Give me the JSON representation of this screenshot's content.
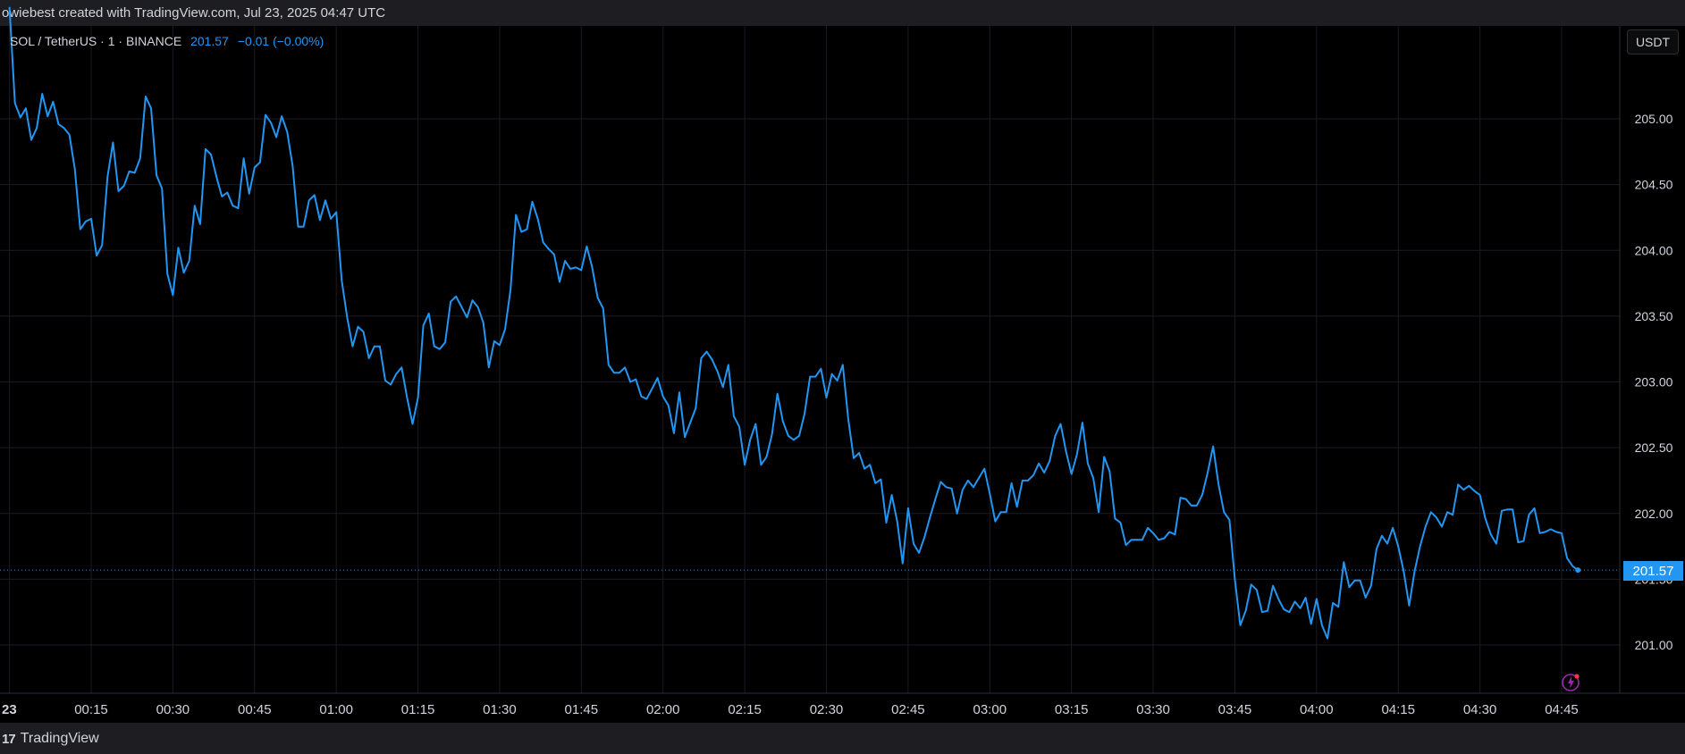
{
  "header": {
    "watermark_text": "owiebest created with TradingView.com, Jul 23, 2025 04:47 UTC"
  },
  "legend": {
    "symbol": "SOL / TetherUS · 1 · BINANCE",
    "last_price": "201.57",
    "change": "−0.01 (−0.00%)"
  },
  "toolbar": {
    "currency_label": "USDT"
  },
  "footer": {
    "brand_label": "TradingView"
  },
  "colors": {
    "line": "#2196f3",
    "background": "#000000",
    "grid": "#1a1c22",
    "axis_text": "#d1d4dc"
  },
  "price_badge": "201.57",
  "chart_data": {
    "type": "line",
    "title": "",
    "xlabel": "",
    "ylabel": "",
    "ylim": [
      200.64,
      205.86
    ],
    "y_ticks": [
      205.0,
      204.5,
      204.0,
      203.5,
      203.0,
      202.5,
      202.0,
      201.5,
      201.0
    ],
    "y_tick_labels": [
      "205.00",
      "204.50",
      "204.00",
      "203.50",
      "203.00",
      "202.50",
      "202.00",
      "201.50",
      "201.00"
    ],
    "x_tick_labels": [
      "23",
      "00:15",
      "00:30",
      "00:45",
      "01:00",
      "01:15",
      "01:30",
      "01:45",
      "02:00",
      "02:15",
      "02:30",
      "02:45",
      "03:00",
      "03:15",
      "03:30",
      "03:45",
      "04:00",
      "04:15",
      "04:30",
      "04:45"
    ],
    "x_tick_minutes": [
      0,
      15,
      30,
      45,
      60,
      75,
      90,
      105,
      120,
      135,
      150,
      165,
      180,
      195,
      210,
      225,
      240,
      255,
      270,
      285
    ],
    "xlim_minutes": [
      0,
      295
    ],
    "grid": true,
    "last_price": 201.57,
    "series": [
      {
        "name": "",
        "x_minutes": [
          0,
          1,
          2,
          3,
          4,
          5,
          6,
          7,
          8,
          9,
          10,
          11,
          12,
          13,
          14,
          15,
          16,
          17,
          18,
          19,
          20,
          21,
          22,
          23,
          24,
          25,
          26,
          27,
          28,
          29,
          30,
          31,
          32,
          33,
          34,
          35,
          36,
          37,
          38,
          39,
          40,
          41,
          42,
          43,
          44,
          45,
          46,
          47,
          48,
          49,
          50,
          51,
          52,
          53,
          54,
          55,
          56,
          57,
          58,
          59,
          60,
          61,
          62,
          63,
          64,
          65,
          66,
          67,
          68,
          69,
          70,
          71,
          72,
          73,
          74,
          75,
          76,
          77,
          78,
          79,
          80,
          81,
          82,
          83,
          84,
          85,
          86,
          87,
          88,
          89,
          90,
          91,
          92,
          93,
          94,
          95,
          96,
          97,
          98,
          99,
          100,
          101,
          102,
          103,
          104,
          105,
          106,
          107,
          108,
          109,
          110,
          111,
          112,
          113,
          114,
          115,
          116,
          117,
          118,
          119,
          120,
          121,
          122,
          123,
          124,
          125,
          126,
          127,
          128,
          129,
          130,
          131,
          132,
          133,
          134,
          135,
          136,
          137,
          138,
          139,
          140,
          141,
          142,
          143,
          144,
          145,
          146,
          147,
          148,
          149,
          150,
          151,
          152,
          153,
          154,
          155,
          156,
          157,
          158,
          159,
          160,
          161,
          162,
          163,
          164,
          165,
          166,
          167,
          168,
          169,
          170,
          171,
          172,
          173,
          174,
          175,
          176,
          177,
          178,
          179,
          180,
          181,
          182,
          183,
          184,
          185,
          186,
          187,
          188,
          189,
          190,
          191,
          192,
          193,
          194,
          195,
          196,
          197,
          198,
          199,
          200,
          201,
          202,
          203,
          204,
          205,
          206,
          207,
          208,
          209,
          210,
          211,
          212,
          213,
          214,
          215,
          216,
          217,
          218,
          219,
          220,
          221,
          222,
          223,
          224,
          225,
          226,
          227,
          228,
          229,
          230,
          231,
          232,
          233,
          234,
          235,
          236,
          237,
          238,
          239,
          240,
          241,
          242,
          243,
          244,
          245,
          246,
          247,
          248,
          249,
          250,
          251,
          252,
          253,
          254,
          255,
          256,
          257,
          258,
          259,
          260,
          261,
          262,
          263,
          264,
          265,
          266,
          267,
          268,
          269,
          270,
          271,
          272,
          273,
          274,
          275,
          276,
          277,
          278,
          279,
          280,
          281,
          282,
          283,
          284,
          285,
          286,
          287,
          288
        ],
        "values": [
          205.85,
          205.12,
          205.01,
          205.08,
          204.84,
          204.93,
          205.19,
          205.02,
          205.13,
          204.96,
          204.93,
          204.88,
          204.62,
          204.16,
          204.22,
          204.24,
          203.96,
          204.04,
          204.56,
          204.82,
          204.45,
          204.49,
          204.6,
          204.59,
          204.7,
          205.17,
          205.08,
          204.57,
          204.47,
          203.82,
          203.66,
          204.02,
          203.83,
          203.92,
          204.34,
          204.2,
          204.77,
          204.73,
          204.56,
          204.41,
          204.44,
          204.34,
          204.32,
          204.7,
          204.43,
          204.63,
          204.67,
          205.03,
          204.97,
          204.86,
          205.02,
          204.9,
          204.64,
          204.18,
          204.18,
          204.38,
          204.42,
          204.23,
          204.38,
          204.24,
          204.29,
          203.77,
          203.49,
          203.27,
          203.42,
          203.38,
          203.18,
          203.27,
          203.27,
          203.01,
          202.98,
          203.06,
          203.11,
          202.88,
          202.68,
          202.88,
          203.43,
          203.52,
          203.27,
          203.25,
          203.3,
          203.61,
          203.65,
          203.57,
          203.49,
          203.62,
          203.57,
          203.45,
          203.11,
          203.31,
          203.28,
          203.4,
          203.7,
          204.27,
          204.14,
          204.16,
          204.37,
          204.24,
          204.06,
          204.01,
          203.97,
          203.76,
          203.92,
          203.86,
          203.87,
          203.85,
          204.03,
          203.87,
          203.64,
          203.56,
          203.13,
          203.07,
          203.07,
          203.11,
          203.0,
          203.02,
          202.89,
          202.87,
          202.95,
          203.03,
          202.89,
          202.82,
          202.61,
          202.92,
          202.58,
          202.69,
          202.8,
          203.18,
          203.23,
          203.17,
          203.08,
          202.96,
          203.13,
          202.74,
          202.66,
          202.37,
          202.56,
          202.68,
          202.37,
          202.43,
          202.6,
          202.91,
          202.7,
          202.59,
          202.56,
          202.59,
          202.76,
          203.04,
          203.04,
          203.1,
          202.88,
          203.06,
          203.01,
          203.13,
          202.72,
          202.42,
          202.46,
          202.34,
          202.37,
          202.23,
          202.26,
          201.93,
          202.14,
          201.94,
          201.62,
          202.04,
          201.77,
          201.7,
          201.82,
          201.97,
          202.11,
          202.24,
          202.2,
          202.19,
          202.0,
          202.18,
          202.25,
          202.2,
          202.27,
          202.34,
          202.15,
          201.94,
          202.01,
          202.01,
          202.23,
          202.05,
          202.25,
          202.25,
          202.29,
          202.38,
          202.31,
          202.4,
          202.59,
          202.68,
          202.47,
          202.3,
          202.45,
          202.69,
          202.38,
          202.27,
          202.01,
          202.43,
          202.32,
          201.96,
          201.93,
          201.76,
          201.8,
          201.8,
          201.8,
          201.89,
          201.85,
          201.8,
          201.81,
          201.86,
          201.84,
          202.12,
          202.11,
          202.06,
          202.06,
          202.14,
          202.31,
          202.51,
          202.22,
          202.01,
          201.95,
          201.5,
          201.15,
          201.26,
          201.46,
          201.42,
          201.25,
          201.26,
          201.45,
          201.35,
          201.27,
          201.25,
          201.33,
          201.28,
          201.36,
          201.16,
          201.35,
          201.15,
          201.05,
          201.32,
          201.29,
          201.63,
          201.44,
          201.49,
          201.49,
          201.36,
          201.45,
          201.73,
          201.83,
          201.77,
          201.89,
          201.75,
          201.56,
          201.3,
          201.56,
          201.75,
          201.9,
          202.01,
          201.97,
          201.9,
          202.01,
          201.99,
          202.22,
          202.18,
          202.21,
          202.17,
          202.14,
          201.96,
          201.84,
          201.77,
          202.02,
          202.03,
          202.03,
          201.78,
          201.79,
          201.99,
          202.04,
          201.85,
          201.86,
          201.88,
          201.86,
          201.85,
          201.66,
          201.6,
          201.57
        ]
      }
    ]
  }
}
